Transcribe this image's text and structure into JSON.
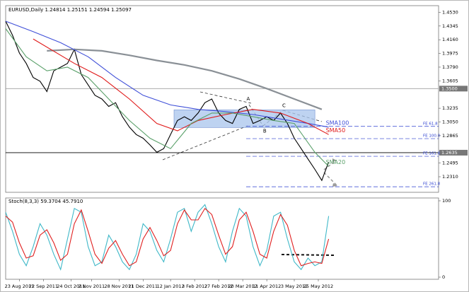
{
  "chart_data": [
    {
      "type": "line",
      "title": "EURUSD,Daily  1.24814 1.25151 1.24594 1.25097",
      "xlim": [
        0,
        63
      ],
      "ylim": [
        1.21,
        1.462
      ],
      "yticks": [
        {
          "value": 1.453,
          "label": "1.4530"
        },
        {
          "value": 1.4345,
          "label": "1.4345"
        },
        {
          "value": 1.416,
          "label": "1.4160"
        },
        {
          "value": 1.3975,
          "label": "1.3975"
        },
        {
          "value": 1.379,
          "label": "1.3790"
        },
        {
          "value": 1.3605,
          "label": "1.3605"
        },
        {
          "value": 1.3235,
          "label": "1.3235"
        },
        {
          "value": 1.305,
          "label": "1.3050"
        },
        {
          "value": 1.2865,
          "label": "1.2865"
        },
        {
          "value": 1.2495,
          "label": "1.2495"
        },
        {
          "value": 1.231,
          "label": "1.2310"
        }
      ],
      "series": [
        {
          "color": "#000000",
          "x": [
            0,
            1,
            2,
            3,
            4,
            5,
            6,
            7,
            8,
            9,
            10,
            11,
            12,
            13,
            14,
            15,
            16,
            17,
            18,
            19,
            20,
            21,
            22,
            23,
            24,
            25,
            26,
            27,
            28,
            29,
            30,
            31,
            32,
            33,
            34,
            35,
            36,
            37,
            38,
            39,
            40,
            41,
            42,
            43,
            44,
            45,
            46,
            47
          ],
          "values": [
            1.441,
            1.422,
            1.398,
            1.384,
            1.365,
            1.36,
            1.346,
            1.374,
            1.379,
            1.384,
            1.403,
            1.369,
            1.355,
            1.341,
            1.336,
            1.326,
            1.331,
            1.312,
            1.298,
            1.288,
            1.283,
            1.274,
            1.264,
            1.269,
            1.288,
            1.307,
            1.312,
            1.307,
            1.317,
            1.331,
            1.336,
            1.317,
            1.307,
            1.303,
            1.322,
            1.326,
            1.303,
            1.307,
            1.312,
            1.307,
            1.317,
            1.303,
            1.283,
            1.269,
            1.255,
            1.241,
            1.226,
            1.251
          ]
        },
        {
          "color": "#8a9096",
          "x": [
            6,
            10,
            14,
            18,
            22,
            26,
            30,
            34,
            38,
            42,
            46
          ],
          "values": [
            1.401,
            1.403,
            1.401,
            1.395,
            1.388,
            1.382,
            1.374,
            1.363,
            1.35,
            1.336,
            1.322
          ]
        },
        {
          "name": "SMA100",
          "color": "#3f4fd8",
          "x": [
            0,
            4,
            8,
            12,
            16,
            20,
            24,
            28,
            32,
            36,
            40,
            44,
            47
          ],
          "values": [
            1.441,
            1.427,
            1.412,
            1.393,
            1.365,
            1.341,
            1.328,
            1.322,
            1.319,
            1.315,
            1.309,
            1.303,
            1.298
          ]
        },
        {
          "name": "SMA50",
          "color": "#e01818",
          "x": [
            4,
            10,
            14,
            18,
            22,
            25,
            28,
            32,
            36,
            40,
            44,
            47
          ],
          "values": [
            1.417,
            1.384,
            1.365,
            1.336,
            1.303,
            1.293,
            1.307,
            1.315,
            1.322,
            1.317,
            1.303,
            1.288
          ]
        },
        {
          "name": "SMA20",
          "color": "#5aa06a",
          "x": [
            0,
            3,
            6,
            9,
            12,
            15,
            18,
            21,
            24,
            27,
            30,
            33,
            36,
            39,
            42,
            45,
            47
          ],
          "values": [
            1.431,
            1.393,
            1.374,
            1.379,
            1.365,
            1.336,
            1.307,
            1.283,
            1.269,
            1.303,
            1.317,
            1.317,
            1.312,
            1.307,
            1.303,
            1.264,
            1.245
          ]
        }
      ],
      "levels": [
        {
          "value": 1.299,
          "label": "FE 61.8"
        },
        {
          "value": 1.2825,
          "label": "FE 100.0"
        },
        {
          "value": 1.2586,
          "label": "FE 161.8"
        },
        {
          "value": 1.2175,
          "label": "FE 261.8"
        }
      ],
      "level_color": "#2b3fd0",
      "markers": [
        {
          "value": 1.35,
          "label": "1.3500",
          "color": "#a0a0a0"
        },
        {
          "value": 1.2635,
          "label": "1.2635",
          "color": "#000000"
        }
      ],
      "annotations": [
        {
          "text": "A",
          "x": 35.3,
          "y": 1.336
        },
        {
          "text": "B",
          "x": 37.7,
          "y": 1.2925
        },
        {
          "text": "C",
          "x": 40.5,
          "y": 1.327
        }
      ],
      "zone": {
        "x": [
          24.5,
          45.0
        ],
        "y": [
          1.2975,
          1.3213
        ],
        "color": "#a8c4ec"
      }
    },
    {
      "type": "line",
      "title": "Stoch(8,3,3) 59.3704 45.7910",
      "xlim": [
        0,
        63
      ],
      "ylim": [
        0,
        100
      ],
      "yticks": [
        0,
        100
      ],
      "xticks": [
        {
          "value": 2,
          "label": "23 Aug 2011"
        },
        {
          "value": 5.5,
          "label": "22 Sep 2011"
        },
        {
          "value": 9.5,
          "label": "24 Oct 2011"
        },
        {
          "value": 12.5,
          "label": "2 Nov 2011"
        },
        {
          "value": 16.5,
          "label": "28 Nov 2011"
        },
        {
          "value": 20,
          "label": "21 Dec 2011"
        },
        {
          "value": 24,
          "label": "12 Jan 2012"
        },
        {
          "value": 27.5,
          "label": "3 Feb 2012"
        },
        {
          "value": 31,
          "label": "27 Feb 2012"
        },
        {
          "value": 34.5,
          "label": "20 Mar 2012"
        },
        {
          "value": 38,
          "label": "11 Apr 2012"
        },
        {
          "value": 42,
          "label": "3 May 2012"
        },
        {
          "value": 45.5,
          "label": "25 May 2012"
        }
      ],
      "series": [
        {
          "color": "#3fb8c8",
          "x": [
            0,
            1,
            2,
            3,
            4,
            5,
            6,
            7,
            8,
            9,
            10,
            11,
            12,
            13,
            14,
            15,
            16,
            17,
            18,
            19,
            20,
            21,
            22,
            23,
            24,
            25,
            26,
            27,
            28,
            29,
            30,
            31,
            32,
            33,
            34,
            35,
            36,
            37,
            38,
            39,
            40,
            41,
            42,
            43,
            44,
            45,
            46,
            47
          ],
          "values": [
            85,
            60,
            30,
            15,
            40,
            70,
            55,
            30,
            10,
            50,
            90,
            85,
            40,
            15,
            20,
            55,
            40,
            20,
            10,
            30,
            70,
            60,
            35,
            20,
            50,
            85,
            90,
            60,
            85,
            95,
            70,
            40,
            20,
            60,
            90,
            80,
            40,
            15,
            35,
            80,
            85,
            50,
            20,
            10,
            25,
            15,
            20,
            80
          ]
        },
        {
          "color": "#e02020",
          "x": [
            0,
            1,
            2,
            3,
            4,
            5,
            6,
            7,
            8,
            9,
            10,
            11,
            12,
            13,
            14,
            15,
            16,
            17,
            18,
            19,
            20,
            21,
            22,
            23,
            24,
            25,
            26,
            27,
            28,
            29,
            30,
            31,
            32,
            33,
            34,
            35,
            36,
            37,
            38,
            39,
            40,
            41,
            42,
            43,
            44,
            45,
            46,
            47
          ],
          "values": [
            80,
            72,
            45,
            25,
            28,
            55,
            62,
            45,
            22,
            30,
            70,
            88,
            60,
            30,
            18,
            38,
            48,
            30,
            15,
            20,
            50,
            65,
            48,
            28,
            35,
            70,
            88,
            75,
            75,
            90,
            82,
            55,
            30,
            40,
            75,
            85,
            60,
            30,
            25,
            60,
            82,
            68,
            35,
            15,
            18,
            20,
            18,
            50
          ]
        }
      ]
    }
  ]
}
